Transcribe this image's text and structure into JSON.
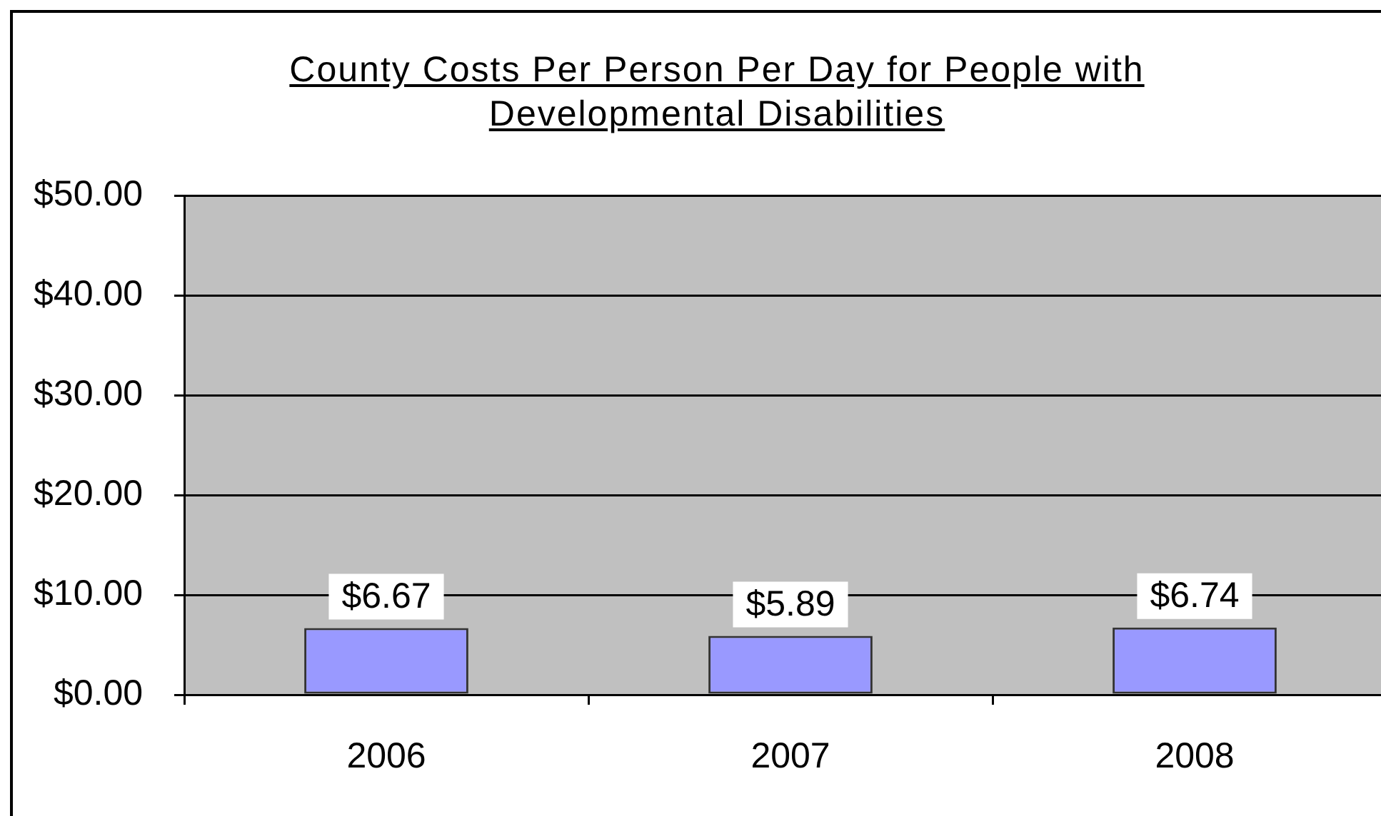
{
  "chart_data": {
    "type": "bar",
    "title": "County Costs Per Person Per Day for People with Developmental Disabilities",
    "categories": [
      "2006",
      "2007",
      "2008"
    ],
    "values": [
      6.67,
      5.89,
      6.74
    ],
    "color": "#9999ff",
    "value_labels": [
      "$6.67",
      "$5.89",
      "$6.74"
    ],
    "ylim": [
      0,
      50
    ],
    "yticks": [
      {
        "value": 0,
        "label": "$0.00"
      },
      {
        "value": 10,
        "label": "$10.00"
      },
      {
        "value": 20,
        "label": "$20.00"
      },
      {
        "value": 30,
        "label": "$30.00"
      },
      {
        "value": 40,
        "label": "$40.00"
      },
      {
        "value": 50,
        "label": "$50.00"
      }
    ],
    "grid": "y"
  }
}
